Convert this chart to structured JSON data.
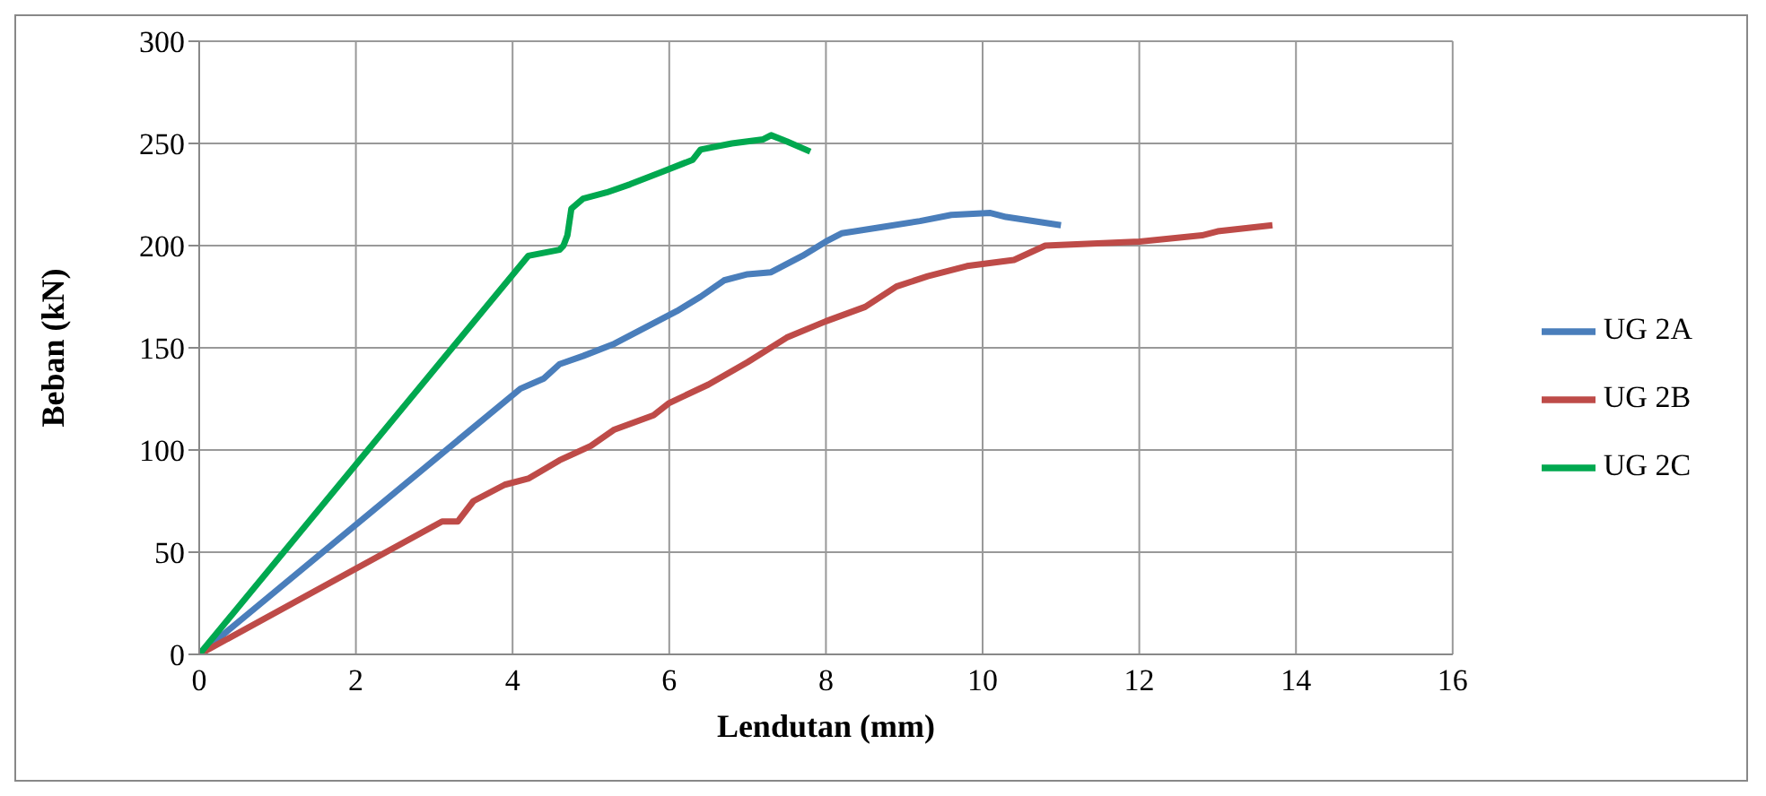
{
  "chart_data": {
    "type": "line",
    "xlabel": "Lendutan (mm)",
    "ylabel": "Beban (kN)",
    "xlim": [
      0,
      16
    ],
    "xticks": [
      0,
      2,
      4,
      6,
      8,
      10,
      12,
      14,
      16
    ],
    "ylim": [
      0,
      300
    ],
    "yticks": [
      0,
      50,
      100,
      150,
      200,
      250,
      300
    ],
    "grid": true,
    "legend": "right",
    "marker": "none",
    "line_style": "solid",
    "series": [
      {
        "name": "UG 2A",
        "color": "#4a7ebb",
        "x": [
          0,
          4.1,
          4.4,
          4.6,
          4.9,
          5.3,
          5.7,
          6.1,
          6.4,
          6.7,
          7,
          7.3,
          7.7,
          8,
          8.2,
          8.7,
          9.2,
          9.6,
          10.1,
          10.3,
          11
        ],
        "values": [
          0,
          130,
          135,
          142,
          146,
          152,
          160,
          168,
          175,
          183,
          186,
          187,
          195,
          202,
          206,
          209,
          212,
          215,
          216,
          214,
          210
        ]
      },
      {
        "name": "UG 2B",
        "color": "#be4b48",
        "x": [
          0,
          3.1,
          3.3,
          3.5,
          3.9,
          4.2,
          4.6,
          5,
          5.3,
          5.8,
          6,
          6.5,
          7,
          7.5,
          8,
          8.5,
          8.9,
          9.3,
          9.8,
          10.4,
          10.8,
          12,
          12.8,
          13,
          13.7
        ],
        "values": [
          0,
          65,
          65,
          75,
          83,
          86,
          95,
          102,
          110,
          117,
          123,
          132,
          143,
          155,
          163,
          170,
          180,
          185,
          190,
          193,
          200,
          202,
          205,
          207,
          210
        ]
      },
      {
        "name": "UG 2C",
        "color": "#00a84f",
        "x": [
          0,
          4.2,
          4.6,
          4.65,
          4.7,
          4.75,
          4.9,
          5.2,
          5.5,
          5.9,
          6.3,
          6.4,
          6.8,
          7.2,
          7.3,
          7.5,
          7.8
        ],
        "values": [
          0,
          195,
          198,
          200,
          205,
          218,
          223,
          226,
          230,
          236,
          242,
          247,
          250,
          252,
          254,
          251,
          246
        ]
      }
    ]
  }
}
